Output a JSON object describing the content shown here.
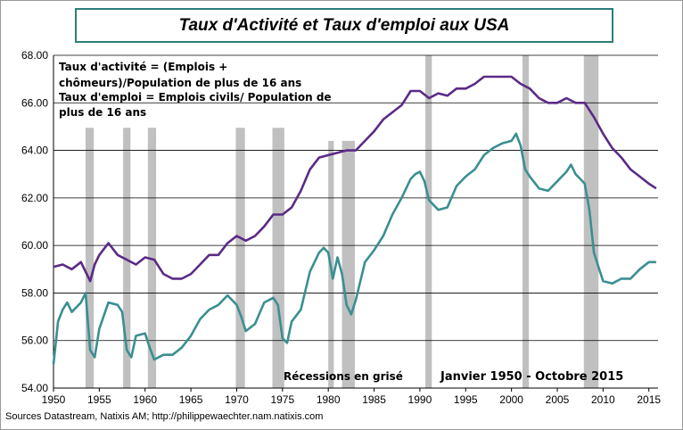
{
  "chart_data": {
    "type": "line",
    "title": "Taux d'Activité et Taux d'emploi aux USA",
    "xlim": [
      1950,
      2016
    ],
    "ylim": [
      54,
      68
    ],
    "x_ticks": [
      "1950",
      "1955",
      "1960",
      "1965",
      "1970",
      "1975",
      "1980",
      "1985",
      "1990",
      "1995",
      "2000",
      "2005",
      "2010",
      "2015"
    ],
    "y_ticks": [
      "54.00",
      "56.00",
      "58.00",
      "60.00",
      "62.00",
      "64.00",
      "66.00",
      "68.00"
    ],
    "grid": "horizontal",
    "annotations": {
      "definition_line1": "Taux d'activité = (Emplois +",
      "definition_line2": "chômeurs)/Population  de plus de 16 ans",
      "definition_line3": "Taux d'emploi = Emplois civils/ Population de",
      "definition_line4": "plus de 16 ans",
      "recessions_note": "Récessions en grisé",
      "period": "Janvier 1950 - Octobre 2015"
    },
    "recessions": [
      [
        1953.5,
        1954.4
      ],
      [
        1957.6,
        1958.4
      ],
      [
        1960.3,
        1961.2
      ],
      [
        1969.9,
        1970.9
      ],
      [
        1973.9,
        1975.2
      ],
      [
        1980.0,
        1980.6
      ],
      [
        1981.5,
        1982.9
      ],
      [
        1990.6,
        1991.3
      ],
      [
        2001.2,
        2001.9
      ],
      [
        2007.9,
        2009.5
      ]
    ],
    "series": [
      {
        "color": "#5b2a86",
        "x": [
          1950,
          1951,
          1952,
          1953,
          1953.5,
          1954,
          1954.5,
          1955,
          1956,
          1957,
          1958,
          1959,
          1960,
          1961,
          1962,
          1963,
          1964,
          1965,
          1966,
          1967,
          1968,
          1969,
          1970,
          1971,
          1972,
          1973,
          1974,
          1975,
          1976,
          1977,
          1978,
          1979,
          1980,
          1981,
          1982,
          1983,
          1984,
          1985,
          1986,
          1987,
          1988,
          1989,
          1990,
          1991,
          1992,
          1993,
          1994,
          1995,
          1996,
          1997,
          1998,
          1999,
          2000,
          2001,
          2002,
          2003,
          2004,
          2005,
          2006,
          2007,
          2008,
          2009,
          2010,
          2011,
          2012,
          2013,
          2014,
          2015,
          2015.8
        ],
        "values": [
          59.1,
          59.2,
          59.0,
          59.3,
          58.9,
          58.5,
          59.2,
          59.6,
          60.1,
          59.6,
          59.4,
          59.2,
          59.5,
          59.4,
          58.8,
          58.6,
          58.6,
          58.8,
          59.2,
          59.6,
          59.6,
          60.1,
          60.4,
          60.2,
          60.4,
          60.8,
          61.3,
          61.3,
          61.6,
          62.3,
          63.2,
          63.7,
          63.8,
          63.9,
          64.0,
          64.0,
          64.4,
          64.8,
          65.3,
          65.6,
          65.9,
          66.5,
          66.5,
          66.2,
          66.4,
          66.3,
          66.6,
          66.6,
          66.8,
          67.1,
          67.1,
          67.1,
          67.1,
          66.8,
          66.6,
          66.2,
          66.0,
          66.0,
          66.2,
          66.0,
          66.0,
          65.4,
          64.7,
          64.1,
          63.7,
          63.2,
          62.9,
          62.6,
          62.4
        ]
      },
      {
        "color": "#3a8f91",
        "x": [
          1950,
          1950.5,
          1951,
          1951.5,
          1952,
          1953,
          1953.5,
          1954,
          1954.5,
          1955,
          1956,
          1957,
          1957.5,
          1958,
          1958.5,
          1959,
          1960,
          1960.5,
          1961,
          1962,
          1963,
          1964,
          1965,
          1966,
          1967,
          1968,
          1969,
          1970,
          1970.5,
          1971,
          1972,
          1973,
          1974,
          1974.5,
          1975,
          1975.5,
          1976,
          1977,
          1978,
          1979,
          1979.5,
          1980,
          1980.5,
          1981,
          1981.5,
          1982,
          1982.5,
          1983,
          1984,
          1985,
          1986,
          1987,
          1988,
          1989,
          1989.5,
          1990,
          1990.5,
          1991,
          1991.5,
          1992,
          1993,
          1994,
          1995,
          1996,
          1997,
          1998,
          1999,
          2000,
          2000.5,
          2001,
          2001.5,
          2002,
          2003,
          2004,
          2005,
          2006,
          2006.5,
          2007,
          2007.5,
          2008,
          2008.5,
          2009,
          2009.5,
          2010,
          2011,
          2012,
          2013,
          2014,
          2015,
          2015.8
        ],
        "values": [
          55.0,
          56.8,
          57.3,
          57.6,
          57.2,
          57.6,
          58.0,
          55.6,
          55.3,
          56.5,
          57.6,
          57.5,
          57.2,
          55.6,
          55.3,
          56.2,
          56.3,
          55.7,
          55.2,
          55.4,
          55.4,
          55.7,
          56.2,
          56.9,
          57.3,
          57.5,
          57.9,
          57.5,
          57.0,
          56.4,
          56.7,
          57.6,
          57.8,
          57.5,
          56.1,
          55.9,
          56.8,
          57.3,
          58.9,
          59.7,
          59.9,
          59.7,
          58.6,
          59.5,
          58.8,
          57.5,
          57.1,
          57.7,
          59.3,
          59.8,
          60.4,
          61.3,
          62.0,
          62.8,
          63.0,
          63.1,
          62.7,
          61.9,
          61.7,
          61.5,
          61.6,
          62.5,
          62.9,
          63.2,
          63.8,
          64.1,
          64.3,
          64.4,
          64.7,
          64.2,
          63.2,
          62.9,
          62.4,
          62.3,
          62.7,
          63.1,
          63.4,
          63.0,
          62.8,
          62.6,
          61.5,
          59.7,
          59.1,
          58.5,
          58.4,
          58.6,
          58.6,
          59.0,
          59.3,
          59.3
        ]
      }
    ]
  },
  "footer": {
    "source": "Sources Datastream, Natixis AM; http://philippewaechter.nam.natixis.com"
  },
  "colors": {
    "title_border": "#2e7d7a",
    "recession_band": "#c0c0c0",
    "grid": "#000000"
  }
}
